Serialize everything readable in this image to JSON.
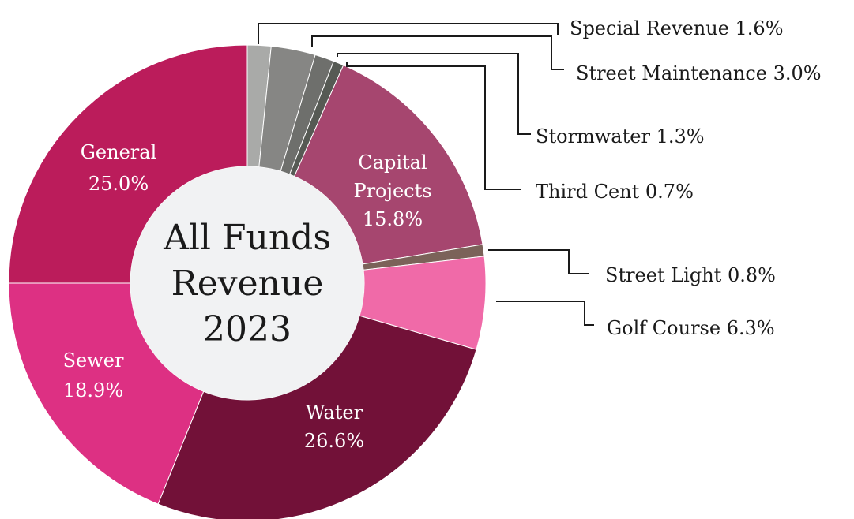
{
  "chart_data": {
    "type": "pie",
    "title": [
      "All Funds",
      "Revenue",
      "2023"
    ],
    "slices": [
      {
        "name": "Special Revenue",
        "value": 1.6,
        "value_label": "1.6%",
        "color": "#a9aaa8"
      },
      {
        "name": "Street Maintenance",
        "value": 3.0,
        "value_label": "3.0%",
        "color": "#868684"
      },
      {
        "name": "Stormwater",
        "value": 1.3,
        "value_label": "1.3%",
        "color": "#6e6f6c"
      },
      {
        "name": "Third Cent",
        "value": 0.7,
        "value_label": "0.7%",
        "color": "#565a54"
      },
      {
        "name": "Capital Projects",
        "value": 15.8,
        "value_label": "15.8%",
        "color": "#a6466f"
      },
      {
        "name": "Street Light",
        "value": 0.8,
        "value_label": "0.8%",
        "color": "#7b6259"
      },
      {
        "name": "Golf Course",
        "value": 6.3,
        "value_label": "6.3%",
        "color": "#f06aa8"
      },
      {
        "name": "Water",
        "value": 26.6,
        "value_label": "26.6%",
        "color": "#721138"
      },
      {
        "name": "Sewer",
        "value": 18.9,
        "value_label": "18.9%",
        "color": "#dd3083"
      },
      {
        "name": "General",
        "value": 25.0,
        "value_label": "25.0%",
        "color": "#bb1c5b"
      }
    ],
    "center_color": "#f1f2f3"
  }
}
